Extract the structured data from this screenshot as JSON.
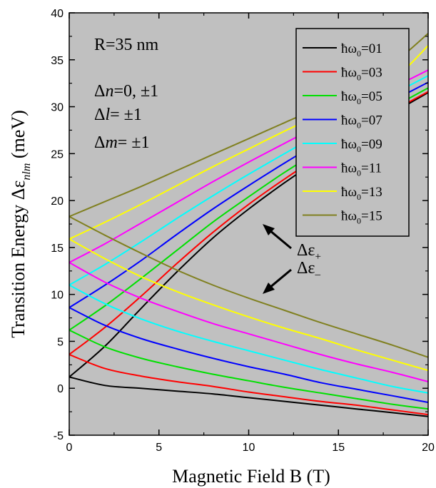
{
  "chart_data": {
    "type": "line",
    "xlabel": "Magnetic Field  B (T)",
    "ylabel_prefix": "Transition Energy  Δε",
    "ylabel_sub": "nlm",
    "ylabel_suffix": " (meV)",
    "xlim": [
      0,
      20
    ],
    "ylim": [
      -5,
      40
    ],
    "xticks": [
      0,
      5,
      10,
      15,
      20
    ],
    "yticks": [
      -5,
      0,
      5,
      10,
      15,
      20,
      25,
      30,
      35,
      40
    ],
    "background": "#c0c0c0",
    "grid": false,
    "legend_position": "top-right",
    "annotations": {
      "radius": "R=35 nm",
      "dn": {
        "sym": "Δ",
        "var": "n",
        "rest": "=0, ±1"
      },
      "dl": {
        "sym": "Δ",
        "var": "l",
        "rest": "= ±1"
      },
      "dm": {
        "sym": "Δ",
        "var": "m",
        "rest": "= ±1"
      },
      "eps_plus": {
        "sym": "Δε",
        "sub": "+"
      },
      "eps_minus": {
        "sym": "Δε",
        "sub": "–"
      }
    },
    "legend_prefix": "ħω",
    "legend_sub": "0",
    "x": [
      0,
      2,
      4,
      6,
      8,
      10,
      12,
      14,
      16,
      18,
      20
    ],
    "series": [
      {
        "name": "=01",
        "color": "#000000",
        "upper": [
          1.2,
          4.5,
          8.5,
          12.4,
          16.0,
          19.1,
          21.9,
          24.5,
          27.0,
          29.3,
          31.5
        ],
        "lower": [
          1.2,
          0.3,
          0.0,
          -0.3,
          -0.6,
          -1.0,
          -1.4,
          -1.8,
          -2.2,
          -2.6,
          -3.0
        ]
      },
      {
        "name": "=03",
        "color": "#ff0000",
        "upper": [
          3.6,
          6.5,
          9.8,
          13.3,
          16.6,
          19.6,
          22.3,
          24.8,
          27.2,
          29.5,
          31.6
        ],
        "lower": [
          3.6,
          2.1,
          1.3,
          0.7,
          0.2,
          -0.4,
          -0.9,
          -1.4,
          -1.8,
          -2.3,
          -2.8
        ]
      },
      {
        "name": "=05",
        "color": "#00e000",
        "upper": [
          6.2,
          8.8,
          11.7,
          14.7,
          17.7,
          20.4,
          23.0,
          25.4,
          27.7,
          29.9,
          32.0
        ],
        "lower": [
          6.2,
          4.4,
          3.2,
          2.3,
          1.5,
          0.8,
          0.1,
          -0.5,
          -1.1,
          -1.7,
          -2.2
        ]
      },
      {
        "name": "=07",
        "color": "#0000ff",
        "upper": [
          8.6,
          11.0,
          13.6,
          16.4,
          19.1,
          21.6,
          24.0,
          26.3,
          28.5,
          30.6,
          32.6
        ],
        "lower": [
          8.6,
          6.7,
          5.3,
          4.2,
          3.2,
          2.3,
          1.5,
          0.6,
          -0.1,
          -0.8,
          -1.5
        ]
      },
      {
        "name": "=09",
        "color": "#00ffff",
        "upper": [
          11.0,
          13.2,
          15.6,
          18.1,
          20.5,
          22.8,
          25.0,
          27.2,
          29.3,
          31.3,
          33.3
        ],
        "lower": [
          11.0,
          9.0,
          7.4,
          6.1,
          5.0,
          4.0,
          3.0,
          2.0,
          1.1,
          0.2,
          -0.5
        ]
      },
      {
        "name": "=11",
        "color": "#ff00ff",
        "upper": [
          13.4,
          15.4,
          17.6,
          19.8,
          22.0,
          24.1,
          26.1,
          28.1,
          30.1,
          32.0,
          33.9
        ],
        "lower": [
          13.4,
          11.3,
          9.6,
          8.2,
          6.9,
          5.8,
          4.7,
          3.6,
          2.6,
          1.7,
          0.7
        ]
      },
      {
        "name": "=13",
        "color": "#ffff00",
        "upper": [
          15.9,
          17.7,
          19.6,
          21.6,
          23.6,
          25.5,
          27.4,
          29.2,
          31.0,
          32.8,
          36.5
        ],
        "lower": [
          15.9,
          13.8,
          11.9,
          10.3,
          8.9,
          7.6,
          6.4,
          5.3,
          4.1,
          3.0,
          1.9
        ]
      },
      {
        "name": "=15",
        "color": "#808020",
        "upper": [
          18.3,
          19.9,
          21.5,
          23.2,
          24.9,
          26.6,
          28.3,
          30.0,
          31.9,
          34.5,
          37.8
        ],
        "lower": [
          18.3,
          16.3,
          14.4,
          12.6,
          11.0,
          9.6,
          8.3,
          7.0,
          5.8,
          4.6,
          3.3
        ]
      }
    ]
  }
}
